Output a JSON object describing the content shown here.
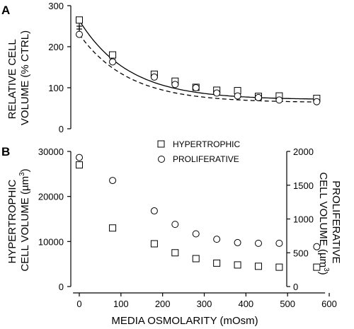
{
  "chart_data": [
    {
      "panel_label": "A",
      "type": "line",
      "ylabel_lines": [
        "RELATIVE CELL",
        "VOLUME (% CTRL)"
      ],
      "ylim": [
        0,
        300
      ],
      "xlim": [
        0,
        600
      ],
      "yticks": [
        0,
        100,
        200,
        300
      ],
      "grid": false,
      "series": [
        {
          "marker": "square",
          "line": "solid",
          "points": [
            {
              "x": 0,
              "y": 265,
              "err": 22
            },
            {
              "x": 80,
              "y": 180,
              "err": 6
            },
            {
              "x": 180,
              "y": 133,
              "err": 5
            },
            {
              "x": 230,
              "y": 116,
              "err": 5
            },
            {
              "x": 280,
              "y": 101,
              "err": 4
            },
            {
              "x": 330,
              "y": 94,
              "err": 4
            },
            {
              "x": 380,
              "y": 93,
              "err": 4
            },
            {
              "x": 430,
              "y": 79,
              "err": 6
            },
            {
              "x": 480,
              "y": 80,
              "err": 4
            },
            {
              "x": 570,
              "y": 74,
              "err": 4
            }
          ]
        },
        {
          "marker": "circle",
          "line": "dashed",
          "points": [
            {
              "x": 0,
              "y": 230,
              "err": 20
            },
            {
              "x": 80,
              "y": 163,
              "err": 6
            },
            {
              "x": 180,
              "y": 126,
              "err": 4
            },
            {
              "x": 230,
              "y": 108,
              "err": 4
            },
            {
              "x": 280,
              "y": 100,
              "err": 3
            },
            {
              "x": 330,
              "y": 87,
              "err": 3
            },
            {
              "x": 380,
              "y": 80,
              "err": 3
            },
            {
              "x": 430,
              "y": 76,
              "err": 3
            },
            {
              "x": 480,
              "y": 70,
              "err": 3
            },
            {
              "x": 570,
              "y": 66,
              "err": 3
            }
          ]
        }
      ],
      "fits": [
        {
          "line": "solid",
          "a": 71,
          "b": 193,
          "k": 0.0085
        },
        {
          "line": "dashed",
          "a": 64,
          "b": 166,
          "k": 0.0085
        }
      ]
    },
    {
      "panel_label": "B",
      "type": "scatter",
      "xlabel": "MEDIA OSMOLARITY (mOsm)",
      "xlim": [
        -15,
        600
      ],
      "xticks": [
        0,
        100,
        200,
        300,
        400,
        500,
        600
      ],
      "ylabel_left_lines": [
        "HYPERTROPHIC",
        "CELL VOLUME (µm",
        "3",
        ")"
      ],
      "ylabel_right_lines": [
        "PROLIFERATIVE",
        "CELL VOLUME (µm",
        "3",
        ")"
      ],
      "ylim_left": [
        0,
        30000
      ],
      "yticks_left": [
        0,
        10000,
        20000,
        30000
      ],
      "ylim_right": [
        0,
        2000
      ],
      "yticks_right": [
        0,
        500,
        1000,
        1500,
        2000
      ],
      "legend_position": "top-center",
      "grid": false,
      "series": [
        {
          "name": "HYPERTROPHIC",
          "marker": "square",
          "axis": "left",
          "points": [
            {
              "x": 0,
              "y": 27000
            },
            {
              "x": 80,
              "y": 13000
            },
            {
              "x": 180,
              "y": 9500
            },
            {
              "x": 230,
              "y": 7500
            },
            {
              "x": 280,
              "y": 6200
            },
            {
              "x": 330,
              "y": 5200
            },
            {
              "x": 380,
              "y": 4800
            },
            {
              "x": 430,
              "y": 4500
            },
            {
              "x": 480,
              "y": 4300
            },
            {
              "x": 570,
              "y": 4300
            }
          ]
        },
        {
          "name": "PROLIFERATIVE",
          "marker": "circle",
          "axis": "right",
          "points": [
            {
              "x": 0,
              "y": 1910
            },
            {
              "x": 80,
              "y": 1570
            },
            {
              "x": 180,
              "y": 1120
            },
            {
              "x": 230,
              "y": 920
            },
            {
              "x": 280,
              "y": 780
            },
            {
              "x": 330,
              "y": 700
            },
            {
              "x": 380,
              "y": 650
            },
            {
              "x": 430,
              "y": 640
            },
            {
              "x": 480,
              "y": 640
            },
            {
              "x": 570,
              "y": 590
            }
          ]
        }
      ]
    }
  ]
}
